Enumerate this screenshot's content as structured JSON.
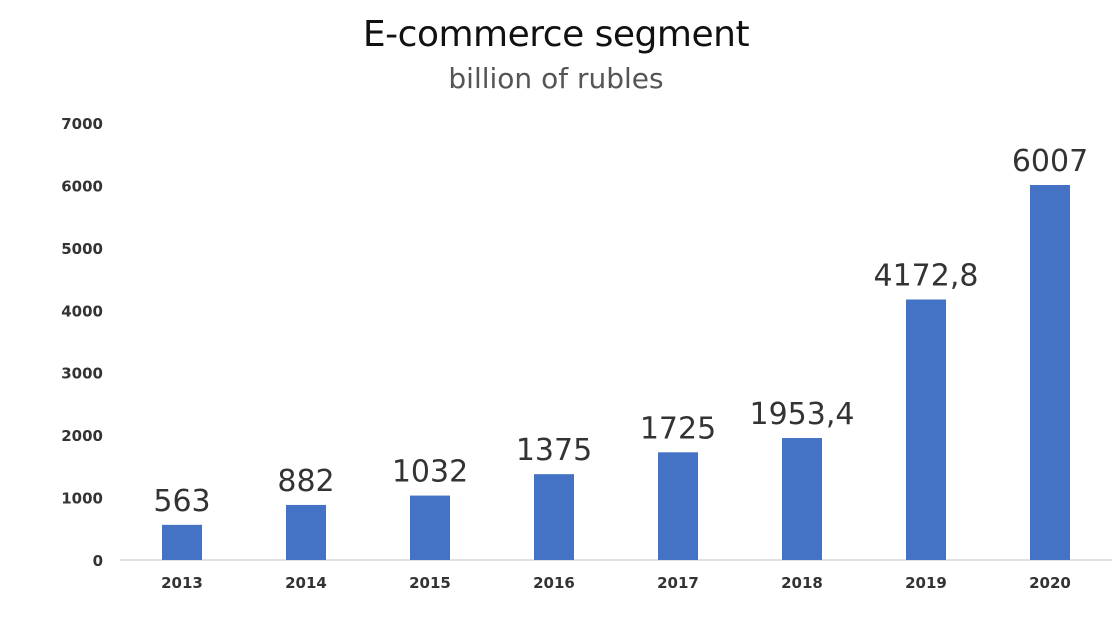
{
  "chart_data": {
    "type": "bar",
    "title": "E-commerce segment",
    "subtitle": "billion of rubles",
    "xlabel": "",
    "ylabel": "",
    "categories": [
      "2013",
      "2014",
      "2015",
      "2016",
      "2017",
      "2018",
      "2019",
      "2020"
    ],
    "values": [
      563,
      882,
      1032,
      1375,
      1725,
      1953.4,
      4172.8,
      6007
    ],
    "data_labels": [
      "563",
      "882",
      "1032",
      "1375",
      "1725",
      "1953,4",
      "4172,8",
      "6007"
    ],
    "ylim": [
      0,
      7000
    ],
    "yticks": [
      0,
      1000,
      2000,
      3000,
      4000,
      5000,
      6000,
      7000
    ],
    "grid": false,
    "legend": "none",
    "bar_color": "#4472C4",
    "axis_color": "#D9D9D9",
    "tick_label_color": "#333333",
    "data_label_color": "#333333"
  }
}
